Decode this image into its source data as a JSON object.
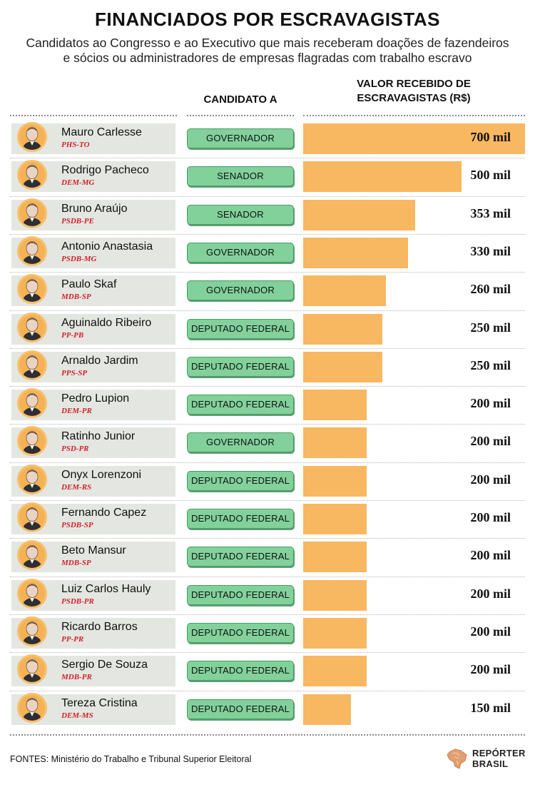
{
  "header": {
    "title": "FINANCIADOS POR ESCRAVAGISTAS",
    "subtitle_line1": "Candidatos ao Congresso e ao Executivo que mais receberam doações de fazendeiros",
    "subtitle_line2": "e sócios ou administradores de empresas flagradas com trabalho escravo"
  },
  "columns": {
    "candidate_to": "CANDIDATO A",
    "value_line1": "VALOR RECEBIDO DE",
    "value_line2": "ESCRAVAGISTAS (R$)"
  },
  "colors": {
    "bar": "#f8b761",
    "office_badge": "#82d19b",
    "party": "#d1222c",
    "name_cell": "#e4e6e1",
    "avatar": "#f5b254"
  },
  "chart_data": {
    "type": "bar",
    "orientation": "horizontal",
    "value_unit": "mil R$",
    "xlim": [
      0,
      700
    ],
    "grid": false,
    "categories": [
      "Mauro Carlesse",
      "Rodrigo Pacheco",
      "Bruno Araújo",
      "Antonio Anastasia",
      "Paulo Skaf",
      "Aguinaldo Ribeiro",
      "Arnaldo Jardim",
      "Pedro Lupion",
      "Ratinho Junior",
      "Onyx Lorenzoni",
      "Fernando Capez",
      "Beto Mansur",
      "Luiz Carlos Hauly",
      "Ricardo Barros",
      "Sergio De Souza",
      "Tereza Cristina"
    ],
    "values": [
      700,
      500,
      353,
      330,
      260,
      250,
      250,
      200,
      200,
      200,
      200,
      200,
      200,
      200,
      200,
      150
    ],
    "rows": [
      {
        "name": "Mauro Carlesse",
        "party": "PHS-TO",
        "office": "GOVERNADOR",
        "value": 700,
        "value_label": "700 mil"
      },
      {
        "name": "Rodrigo Pacheco",
        "party": "DEM-MG",
        "office": "SENADOR",
        "value": 500,
        "value_label": "500 mil"
      },
      {
        "name": "Bruno Araújo",
        "party": "PSDB-PE",
        "office": "SENADOR",
        "value": 353,
        "value_label": "353 mil"
      },
      {
        "name": "Antonio Anastasia",
        "party": "PSDB-MG",
        "office": "GOVERNADOR",
        "value": 330,
        "value_label": "330 mil"
      },
      {
        "name": "Paulo Skaf",
        "party": "MDB-SP",
        "office": "GOVERNADOR",
        "value": 260,
        "value_label": "260 mil"
      },
      {
        "name": "Aguinaldo Ribeiro",
        "party": "PP-PB",
        "office": "DEPUTADO FEDERAL",
        "value": 250,
        "value_label": "250 mil"
      },
      {
        "name": "Arnaldo Jardim",
        "party": "PPS-SP",
        "office": "DEPUTADO FEDERAL",
        "value": 250,
        "value_label": "250 mil"
      },
      {
        "name": "Pedro Lupion",
        "party": "DEM-PR",
        "office": "DEPUTADO FEDERAL",
        "value": 200,
        "value_label": "200 mil"
      },
      {
        "name": "Ratinho Junior",
        "party": "PSD-PR",
        "office": "GOVERNADOR",
        "value": 200,
        "value_label": "200 mil"
      },
      {
        "name": "Onyx Lorenzoni",
        "party": "DEM-RS",
        "office": "DEPUTADO FEDERAL",
        "value": 200,
        "value_label": "200 mil"
      },
      {
        "name": "Fernando Capez",
        "party": "PSDB-SP",
        "office": "DEPUTADO FEDERAL",
        "value": 200,
        "value_label": "200 mil"
      },
      {
        "name": "Beto Mansur",
        "party": "MDB-SP",
        "office": "DEPUTADO FEDERAL",
        "value": 200,
        "value_label": "200 mil"
      },
      {
        "name": "Luiz Carlos Hauly",
        "party": "PSDB-PR",
        "office": "DEPUTADO FEDERAL",
        "value": 200,
        "value_label": "200 mil"
      },
      {
        "name": "Ricardo Barros",
        "party": "PP-PR",
        "office": "DEPUTADO FEDERAL",
        "value": 200,
        "value_label": "200 mil"
      },
      {
        "name": "Sergio De Souza",
        "party": "MDB-PR",
        "office": "DEPUTADO FEDERAL",
        "value": 200,
        "value_label": "200 mil"
      },
      {
        "name": "Tereza Cristina",
        "party": "DEM-MS",
        "office": "DEPUTADO FEDERAL",
        "value": 150,
        "value_label": "150 mil"
      }
    ]
  },
  "footer": {
    "sources": "FONTES: Ministério do Trabalho e Tribunal Superior Eleitoral",
    "logo_line1": "REPÓRTER",
    "logo_line2": "BRASIL",
    "logo_icon": "brazil-map-icon"
  }
}
